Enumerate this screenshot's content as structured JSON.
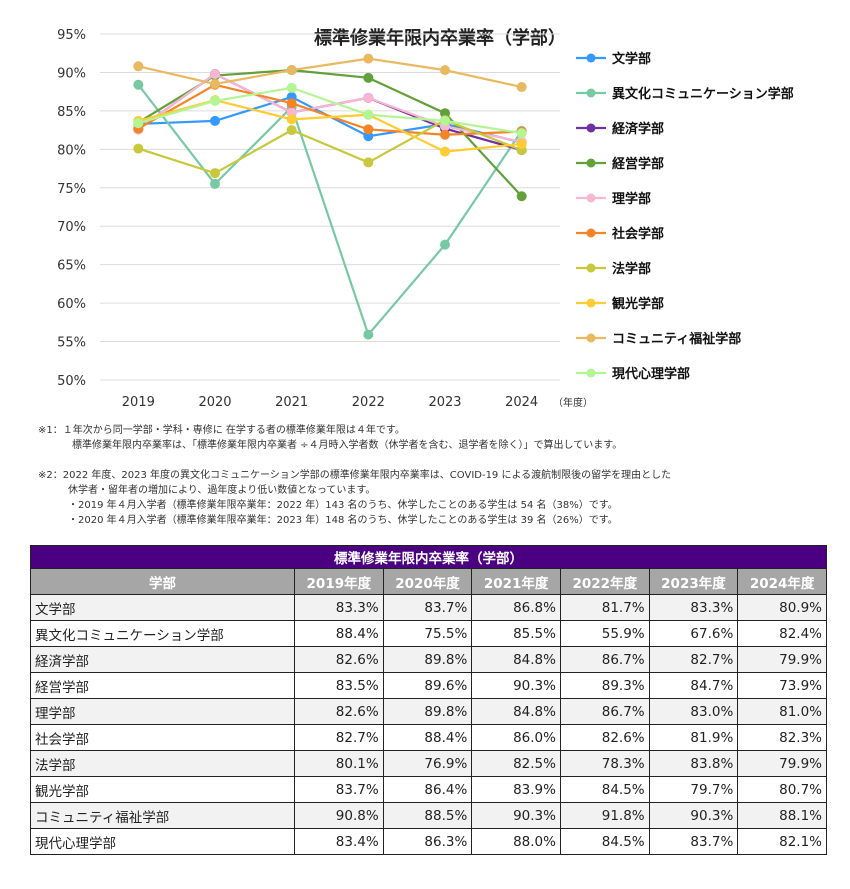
{
  "chart_data": {
    "type": "line",
    "title": "標準修業年限内卒業率（学部）",
    "xlabel": "（年度）",
    "ylabel": "",
    "x": [
      "2019",
      "2020",
      "2021",
      "2022",
      "2023",
      "2024"
    ],
    "ylim": [
      50,
      95
    ],
    "yticks": [
      "95%",
      "90%",
      "85%",
      "80%",
      "75%",
      "70%",
      "65%",
      "60%",
      "55%",
      "50%"
    ],
    "ytick_values": [
      95,
      90,
      85,
      80,
      75,
      70,
      65,
      60,
      55,
      50
    ],
    "grid": true,
    "legend_position": "right",
    "series": [
      {
        "name": "文学部",
        "color": "#3399ff",
        "values": [
          83.3,
          83.7,
          86.8,
          81.7,
          83.3,
          80.9
        ]
      },
      {
        "name": "異文化コミュニケーション学部",
        "color": "#77c9a4",
        "values": [
          88.4,
          75.5,
          85.5,
          55.9,
          67.6,
          82.4
        ]
      },
      {
        "name": "経済学部",
        "color": "#7030a0",
        "values": [
          82.6,
          89.8,
          84.8,
          86.7,
          82.7,
          79.9
        ]
      },
      {
        "name": "経営学部",
        "color": "#62a03a",
        "values": [
          83.5,
          89.6,
          90.3,
          89.3,
          84.7,
          73.9
        ]
      },
      {
        "name": "理学部",
        "color": "#f7b6d2",
        "values": [
          82.6,
          89.8,
          84.8,
          86.7,
          83.0,
          81.0
        ]
      },
      {
        "name": "社会学部",
        "color": "#f58426",
        "values": [
          82.7,
          88.4,
          86.0,
          82.6,
          81.9,
          82.3
        ]
      },
      {
        "name": "法学部",
        "color": "#c8c83c",
        "values": [
          80.1,
          76.9,
          82.5,
          78.3,
          83.8,
          79.9
        ]
      },
      {
        "name": "観光学部",
        "color": "#ffcc33",
        "values": [
          83.7,
          86.4,
          83.9,
          84.5,
          79.7,
          80.7
        ]
      },
      {
        "name": "コミュニティ福祉学部",
        "color": "#e8b960",
        "values": [
          90.8,
          88.5,
          90.3,
          91.8,
          90.3,
          88.1
        ]
      },
      {
        "name": "現代心理学部",
        "color": "#b3f593",
        "values": [
          83.4,
          86.3,
          88.0,
          84.5,
          83.7,
          82.1
        ]
      }
    ]
  },
  "notes": {
    "note1": [
      "※1：１年次から同一学部・学科・専修に 在学する者の標準修業年限は４年です。",
      "標準修業年限内卒業率は、「標準修業年限内卒業者 ÷４月時入学者数（休学者を含む、退学者を除く）」で算出しています。"
    ],
    "note2": [
      "※2：2022 年度、2023 年度の異文化コミュニケーション学部の標準修業年限内卒業率は、COVID-19 による渡航制限後の留学を理由とした",
      "休学者・留年者の増加により、過年度より低い数値となっています。",
      "・2019 年４月入学者（標準修業年限卒業年：2022 年）143 名のうち、休学したことのある学生は 54 名（38%）です。",
      "・2020 年４月入学者（標準修業年限卒業年：2023 年）148 名のうち、休学したことのある学生は 39 名（26%）です。"
    ]
  },
  "table": {
    "caption": "標準修業年限内卒業率（学部）",
    "headers": [
      "学部",
      "2019年度",
      "2020年度",
      "2021年度",
      "2022年度",
      "2023年度",
      "2024年度"
    ],
    "rows": [
      [
        "文学部",
        "83.3%",
        "83.7%",
        "86.8%",
        "81.7%",
        "83.3%",
        "80.9%"
      ],
      [
        "異文化コミュニケーション学部",
        "88.4%",
        "75.5%",
        "85.5%",
        "55.9%",
        "67.6%",
        "82.4%"
      ],
      [
        "経済学部",
        "82.6%",
        "89.8%",
        "84.8%",
        "86.7%",
        "82.7%",
        "79.9%"
      ],
      [
        "経営学部",
        "83.5%",
        "89.6%",
        "90.3%",
        "89.3%",
        "84.7%",
        "73.9%"
      ],
      [
        "理学部",
        "82.6%",
        "89.8%",
        "84.8%",
        "86.7%",
        "83.0%",
        "81.0%"
      ],
      [
        "社会学部",
        "82.7%",
        "88.4%",
        "86.0%",
        "82.6%",
        "81.9%",
        "82.3%"
      ],
      [
        "法学部",
        "80.1%",
        "76.9%",
        "82.5%",
        "78.3%",
        "83.8%",
        "79.9%"
      ],
      [
        "観光学部",
        "83.7%",
        "86.4%",
        "83.9%",
        "84.5%",
        "79.7%",
        "80.7%"
      ],
      [
        "コミュニティ福祉学部",
        "90.8%",
        "88.5%",
        "90.3%",
        "91.8%",
        "90.3%",
        "88.1%"
      ],
      [
        "現代心理学部",
        "83.4%",
        "86.3%",
        "88.0%",
        "84.5%",
        "83.7%",
        "82.1%"
      ]
    ]
  }
}
